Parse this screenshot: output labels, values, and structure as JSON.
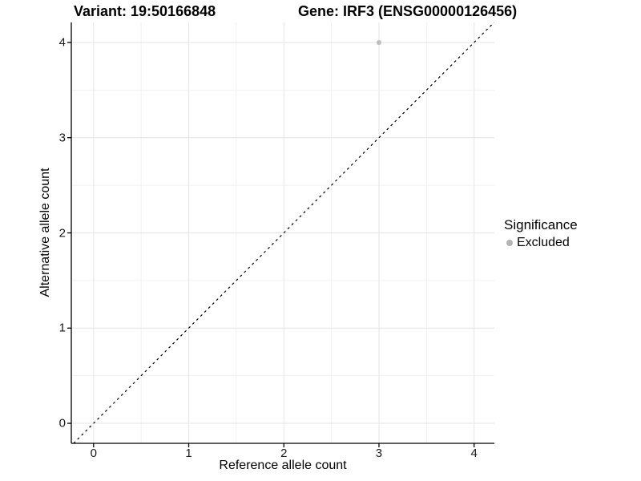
{
  "chart_data": {
    "type": "scatter",
    "titles": {
      "left": "Variant: 19:50166848",
      "right": "Gene: IRF3 (ENSG00000126456)"
    },
    "xlabel": "Reference allele count",
    "ylabel": "Alternative allele count",
    "xlim": [
      -0.234,
      4.213
    ],
    "ylim": [
      -0.21,
      4.21
    ],
    "xticks": [
      0,
      1,
      2,
      3,
      4
    ],
    "yticks": [
      0,
      1,
      2,
      3,
      4
    ],
    "minor_xticks": [
      0.5,
      1.5,
      2.5,
      3.5
    ],
    "minor_yticks": [
      0.5,
      1.5,
      2.5,
      3.5
    ],
    "grid": {
      "major_color": "#e4e4e4",
      "minor_color": "#f1f1f1"
    },
    "axis_color": "#000000",
    "identity_line": {
      "equation": "y = x",
      "style": "dashed",
      "color": "#000000"
    },
    "series": [
      {
        "name": "Excluded",
        "color": "#bdbdbd",
        "points": [
          {
            "x": 3,
            "y": 4
          }
        ]
      }
    ],
    "legend": {
      "title": "Significance",
      "position": "right",
      "items": [
        {
          "label": "Excluded",
          "color": "#b3b3b3"
        }
      ]
    }
  }
}
